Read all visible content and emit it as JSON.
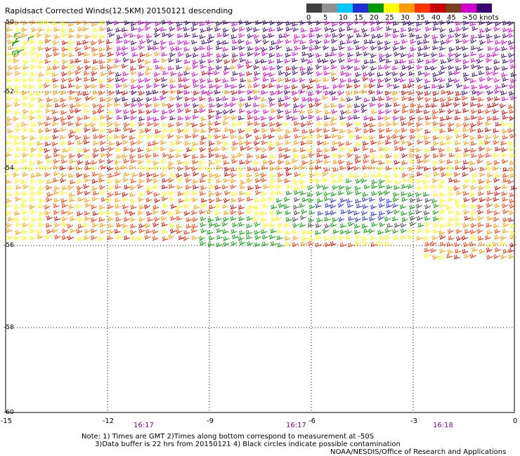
{
  "title": "Rapidsact Corrected Winds(12.5KM) 20150121 descending",
  "colorbar": {
    "labels": [
      "0",
      "5",
      "10",
      "15",
      "20",
      "25",
      "30",
      "35",
      "40",
      "45",
      ">50 knots"
    ],
    "colors": [
      "#404040",
      "#909090",
      "#00c8ff",
      "#2030d8",
      "#009a00",
      "#ffff00",
      "#ff9900",
      "#ff3300",
      "#cc0000",
      "#7a4020",
      "#d000d0",
      "#3b0070"
    ]
  },
  "axes": {
    "lat_labels": [
      "-50",
      "-52",
      "-54",
      "-56",
      "-58",
      "-60"
    ],
    "lon_labels": [
      "-15",
      "-12",
      "-9",
      "-6",
      "-3",
      "0"
    ],
    "time_labels": [
      "16:17",
      "16:17",
      "16:18"
    ]
  },
  "notes": "Note: 1) Times are GMT 2)Times along bottom correspond to measurement at -50S\n      3)Data buffer is 22 hrs from 20150121 4) Black circles indicate possible contamination",
  "credit": "NOAA/NESDIS/Office of Research and Applications"
}
